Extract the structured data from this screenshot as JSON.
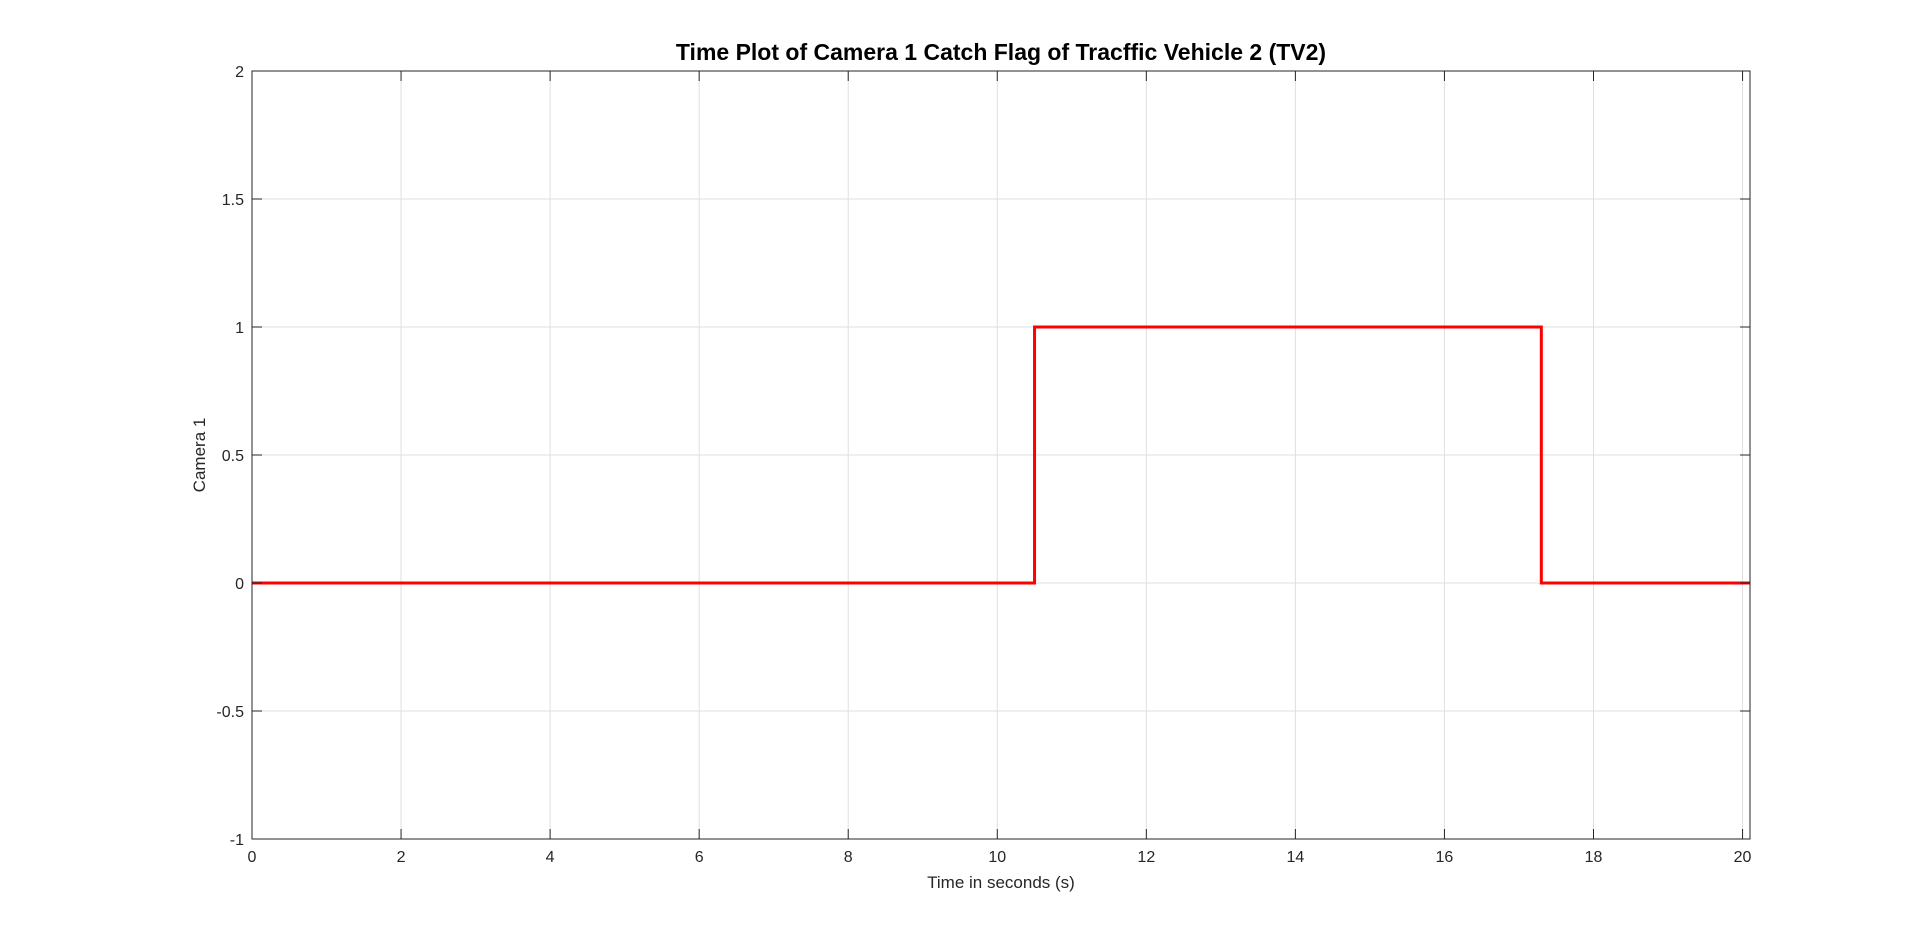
{
  "chart_data": {
    "type": "line",
    "title": "Time Plot of Camera 1 Catch Flag of Tracffic Vehicle 2 (TV2)",
    "xlabel": "Time in seconds (s)",
    "ylabel": "Camera 1",
    "xlim": [
      0,
      20.1
    ],
    "ylim": [
      -1,
      2
    ],
    "xticks": [
      0,
      2,
      4,
      6,
      8,
      10,
      12,
      14,
      16,
      18,
      20
    ],
    "xtick_labels": [
      "0",
      "2",
      "4",
      "6",
      "8",
      "10",
      "12",
      "14",
      "16",
      "18",
      "20"
    ],
    "yticks": [
      -1,
      -0.5,
      0,
      0.5,
      1,
      1.5,
      2
    ],
    "ytick_labels": [
      "-1",
      "-0.5",
      "0",
      "0.5",
      "1",
      "1.5",
      "2"
    ],
    "grid": true,
    "series": [
      {
        "color": "#ff0000",
        "x": [
          0,
          10.5,
          10.5,
          17.3,
          17.3,
          20.1
        ],
        "y": [
          0,
          0,
          1,
          1,
          0,
          0
        ]
      }
    ]
  }
}
